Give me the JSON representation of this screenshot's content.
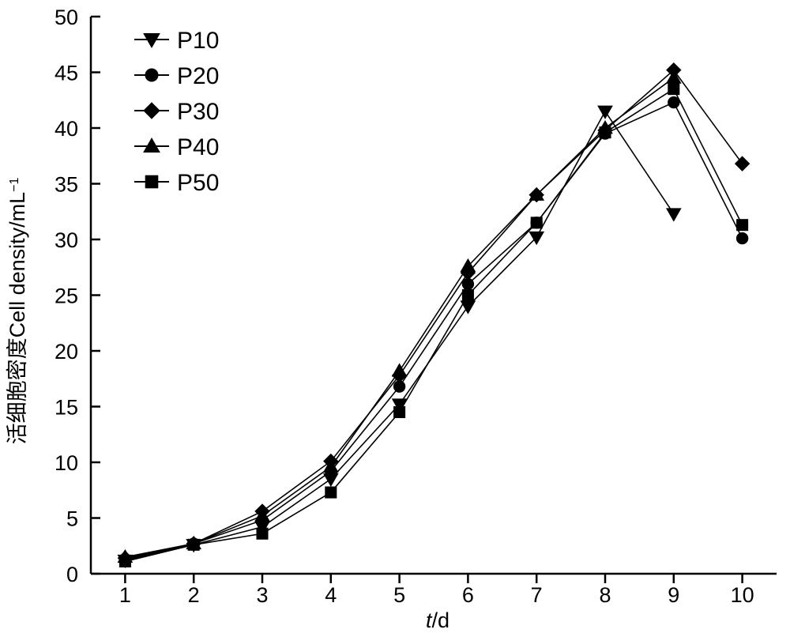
{
  "chart_data": {
    "type": "line",
    "title": "",
    "xlabel": "t/d",
    "xlabel_italic": "t",
    "xlabel_rest": "/d",
    "ylabel": "活细胞密度Cell density/mL",
    "ylabel_superscript": "−1",
    "x": [
      1,
      2,
      3,
      4,
      5,
      6,
      7,
      8,
      9,
      10
    ],
    "xlim": [
      0.5,
      10.5
    ],
    "ylim": [
      0,
      50
    ],
    "x_ticks": [
      "1",
      "2",
      "3",
      "4",
      "5",
      "6",
      "7",
      "8",
      "9",
      "10"
    ],
    "y_ticks": [
      "0",
      "5",
      "10",
      "15",
      "20",
      "25",
      "30",
      "35",
      "40",
      "45",
      "50"
    ],
    "grid": false,
    "legend_position": "top-left",
    "series": [
      {
        "name": "P10",
        "marker": "triangle-down",
        "values": [
          1.2,
          2.6,
          4.2,
          8.5,
          15.2,
          24.0,
          30.2,
          41.5,
          32.3,
          null
        ]
      },
      {
        "name": "P20",
        "marker": "circle",
        "values": [
          1.3,
          2.7,
          4.8,
          9.2,
          16.8,
          26.0,
          31.5,
          39.5,
          42.3,
          30.1
        ]
      },
      {
        "name": "P30",
        "marker": "diamond",
        "values": [
          1.4,
          2.7,
          5.6,
          10.1,
          17.8,
          27.0,
          34.0,
          39.8,
          45.2,
          36.8
        ]
      },
      {
        "name": "P40",
        "marker": "triangle-up",
        "values": [
          1.5,
          2.7,
          5.2,
          9.6,
          18.2,
          27.6,
          34.0,
          40.0,
          44.5,
          null
        ]
      },
      {
        "name": "P50",
        "marker": "square",
        "values": [
          1.1,
          2.6,
          3.6,
          7.3,
          14.5,
          25.0,
          31.5,
          39.6,
          43.5,
          31.3
        ]
      }
    ]
  }
}
